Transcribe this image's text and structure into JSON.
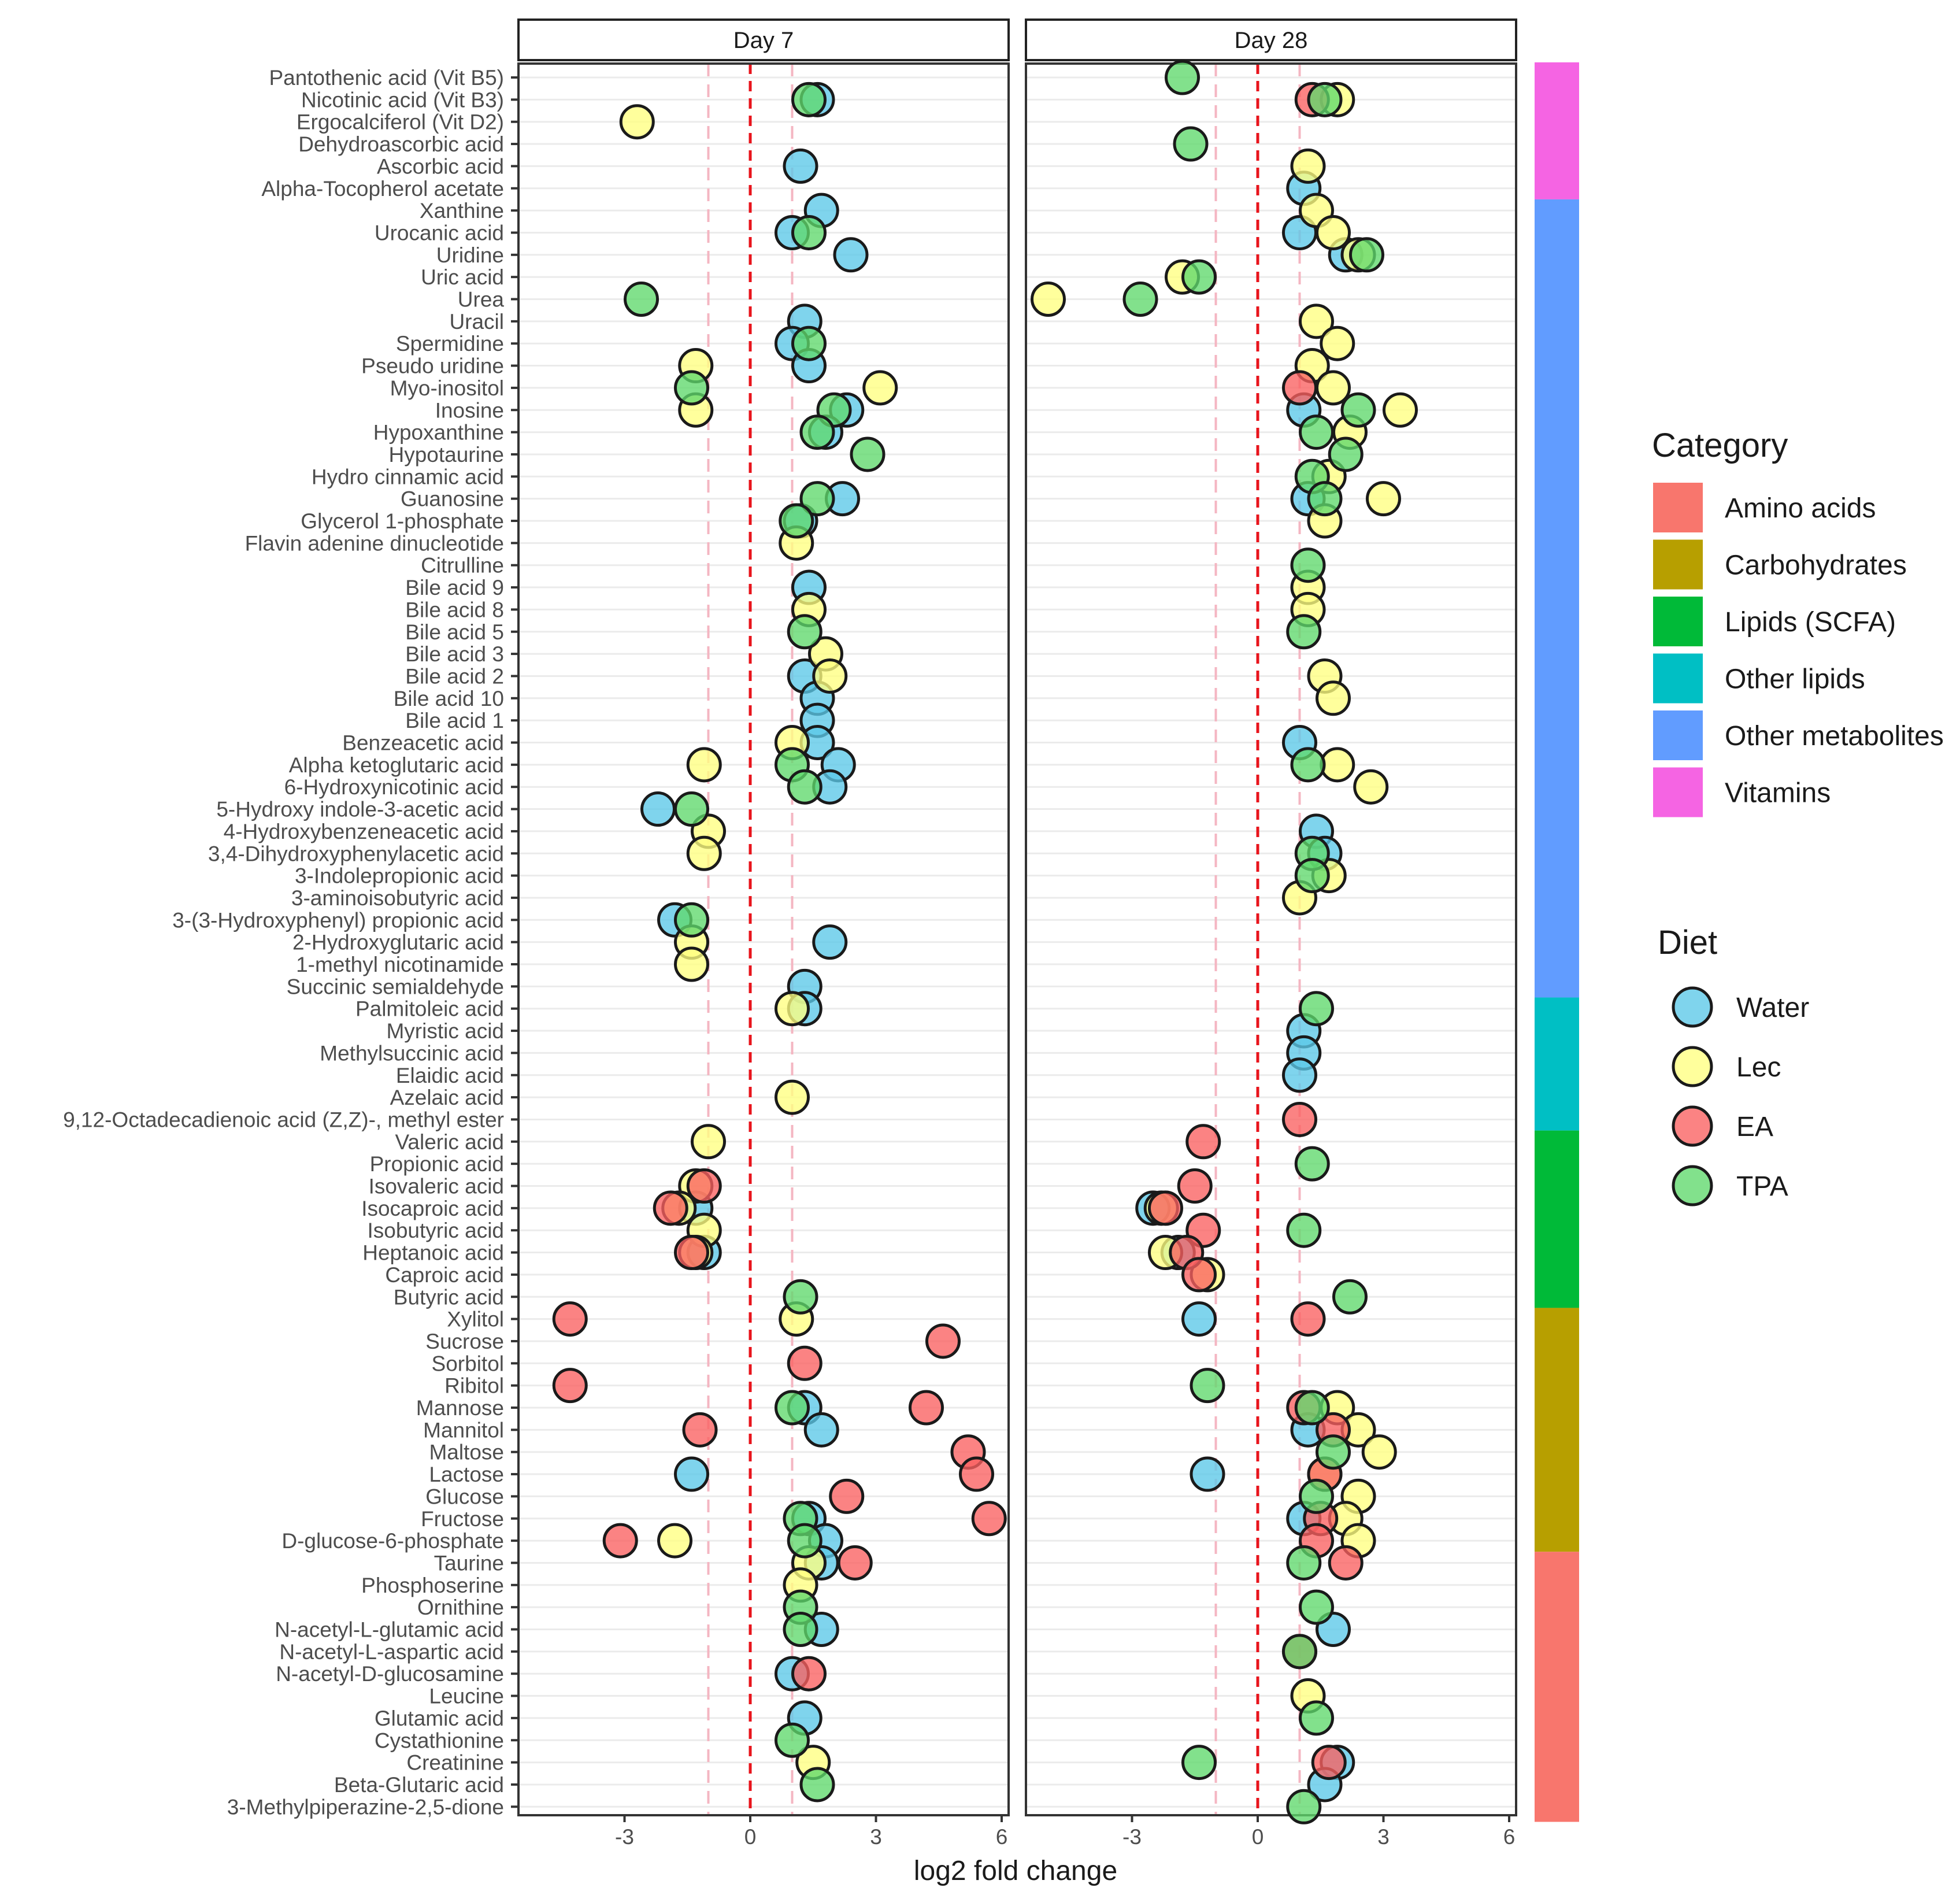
{
  "chart_data": {
    "type": "scatter",
    "xlabel": "log2 fold change",
    "xlim": [
      -5.5,
      6.2
    ],
    "x_ticks": [
      -3,
      0,
      3,
      6
    ],
    "tick_labels": [
      "-3",
      "0",
      "3",
      "6"
    ],
    "reference_lines": {
      "zero": 0,
      "threshold": [
        -1,
        1
      ]
    },
    "panels": [
      "Day 7",
      "Day 28"
    ],
    "metabolites": [
      "Pantothenic acid (Vit B5)",
      "Nicotinic acid (Vit B3)",
      "Ergocalciferol (Vit D2)",
      "Dehydroascorbic acid",
      "Ascorbic acid",
      "Alpha-Tocopherol acetate",
      "Xanthine",
      "Urocanic acid",
      "Uridine",
      "Uric acid",
      "Urea",
      "Uracil",
      "Spermidine",
      "Pseudo uridine",
      "Myo-inositol",
      "Inosine",
      "Hypoxanthine",
      "Hypotaurine",
      "Hydro cinnamic acid",
      "Guanosine",
      "Glycerol 1-phosphate",
      "Flavin adenine dinucleotide",
      "Citrulline",
      "Bile acid 9",
      "Bile acid 8",
      "Bile acid 5",
      "Bile acid 3",
      "Bile acid 2",
      "Bile acid 10",
      "Bile acid 1",
      "Benzeacetic acid",
      "Alpha ketoglutaric acid",
      "6-Hydroxynicotinic acid",
      "5-Hydroxy indole-3-acetic acid",
      "4-Hydroxybenzeneacetic acid",
      "3,4-Dihydroxyphenylacetic acid",
      "3-Indolepropionic acid",
      "3-aminoisobutyric acid",
      "3-(3-Hydroxyphenyl) propionic acid",
      "2-Hydroxyglutaric acid",
      "1-methyl nicotinamide",
      "Succinic semialdehyde",
      "Palmitoleic acid",
      "Myristic acid",
      "Methylsuccinic acid",
      "Elaidic acid",
      "Azelaic acid",
      "9,12-Octadecadienoic acid (Z,Z)-, methyl ester",
      "Valeric acid",
      "Propionic acid",
      "Isovaleric acid",
      "Isocaproic acid",
      "Isobutyric acid",
      "Heptanoic acid",
      "Caproic acid",
      "Butyric acid",
      "Xylitol",
      "Sucrose",
      "Sorbitol",
      "Ribitol",
      "Mannose",
      "Mannitol",
      "Maltose",
      "Lactose",
      "Glucose",
      "Fructose",
      "D-glucose-6-phosphate",
      "Taurine",
      "Phosphoserine",
      "Ornithine",
      "N-acetyl-L-glutamic acid",
      "N-acetyl-L-aspartic acid",
      "N-acetyl-D-glucosamine",
      "Leucine",
      "Glutamic acid",
      "Cystathionine",
      "Creatinine",
      "Beta-Glutaric acid",
      "3-Methylpiperazine-2,5-dione"
    ],
    "categories": [
      {
        "name": "Vitamins",
        "color": "#F564E3",
        "from": "Pantothenic acid (Vit B5)",
        "to": "Alpha-Tocopherol acetate"
      },
      {
        "name": "Other metabolites",
        "color": "#619CFF",
        "from": "Xanthine",
        "to": "Succinic semialdehyde"
      },
      {
        "name": "Other lipids",
        "color": "#00BFC4",
        "from": "Palmitoleic acid",
        "to": "9,12-Octadecadienoic acid (Z,Z)-, methyl ester"
      },
      {
        "name": "Lipids (SCFA)",
        "color": "#00BA38",
        "from": "Valeric acid",
        "to": "Butyric acid"
      },
      {
        "name": "Carbohydrates",
        "color": "#B79F00",
        "from": "Xylitol",
        "to": "D-glucose-6-phosphate"
      },
      {
        "name": "Amino acids",
        "color": "#F8766D",
        "from": "Taurine",
        "to": "3-Methylpiperazine-2,5-dione"
      }
    ],
    "legend_category": {
      "title": "Category",
      "items": [
        {
          "label": "Amino acids",
          "color": "#F8766D"
        },
        {
          "label": "Carbohydrates",
          "color": "#B79F00"
        },
        {
          "label": "Lipids (SCFA)",
          "color": "#00BA38"
        },
        {
          "label": "Other lipids",
          "color": "#00BFC4"
        },
        {
          "label": "Other metabolites",
          "color": "#619CFF"
        },
        {
          "label": "Vitamins",
          "color": "#F564E3"
        }
      ]
    },
    "legend_diet": {
      "title": "Diet",
      "items": [
        {
          "label": "Water",
          "color": "#5BC8E8"
        },
        {
          "label": "Lec",
          "color": "#FFFF80"
        },
        {
          "label": "EA",
          "color": "#FA6060"
        },
        {
          "label": "TPA",
          "color": "#5FD96B"
        }
      ]
    },
    "series": [
      {
        "panel": "Day 7",
        "diet": "Water",
        "points": [
          [
            "Nicotinic acid (Vit B3)",
            1.6
          ],
          [
            "Ascorbic acid",
            1.2
          ],
          [
            "Xanthine",
            1.7
          ],
          [
            "Urocanic acid",
            1.0
          ],
          [
            "Uridine",
            2.4
          ],
          [
            "Uracil",
            1.3
          ],
          [
            "Spermidine",
            1.0
          ],
          [
            "Pseudo uridine",
            1.4
          ],
          [
            "Inosine",
            2.3
          ],
          [
            "Hypoxanthine",
            1.8
          ],
          [
            "Guanosine",
            2.2
          ],
          [
            "Glycerol 1-phosphate",
            1.2
          ],
          [
            "Bile acid 9",
            1.4
          ],
          [
            "Bile acid 2",
            1.3
          ],
          [
            "Bile acid 10",
            1.6
          ],
          [
            "Bile acid 1",
            1.6
          ],
          [
            "Benzeacetic acid",
            1.6
          ],
          [
            "Alpha ketoglutaric acid",
            2.1
          ],
          [
            "6-Hydroxynicotinic acid",
            1.9
          ],
          [
            "5-Hydroxy indole-3-acetic acid",
            -2.2
          ],
          [
            "3-(3-Hydroxyphenyl) propionic acid",
            -1.8
          ],
          [
            "2-Hydroxyglutaric acid",
            1.9
          ],
          [
            "Succinic semialdehyde",
            1.3
          ],
          [
            "Palmitoleic acid",
            1.3
          ],
          [
            "Isocaproic acid",
            -1.3
          ],
          [
            "Heptanoic acid",
            -1.1
          ],
          [
            "Mannose",
            1.3
          ],
          [
            "Mannitol",
            1.7
          ],
          [
            "Lactose",
            -1.4
          ],
          [
            "Fructose",
            1.4
          ],
          [
            "D-glucose-6-phosphate",
            1.8
          ],
          [
            "Taurine",
            1.7
          ],
          [
            "N-acetyl-L-glutamic acid",
            1.7
          ],
          [
            "N-acetyl-D-glucosamine",
            1.0
          ],
          [
            "Glutamic acid",
            1.3
          ]
        ]
      },
      {
        "panel": "Day 7",
        "diet": "Lec",
        "points": [
          [
            "Ergocalciferol (Vit D2)",
            -2.7
          ],
          [
            "Pseudo uridine",
            -1.3
          ],
          [
            "Myo-inositol",
            3.1
          ],
          [
            "Inosine",
            -1.3
          ],
          [
            "Flavin adenine dinucleotide",
            1.1
          ],
          [
            "Bile acid 8",
            1.4
          ],
          [
            "Bile acid 3",
            1.8
          ],
          [
            "Bile acid 2",
            1.9
          ],
          [
            "Benzeacetic acid",
            1.0
          ],
          [
            "Alpha ketoglutaric acid",
            -1.1
          ],
          [
            "4-Hydroxybenzeneacetic acid",
            -1.0
          ],
          [
            "3,4-Dihydroxyphenylacetic acid",
            -1.1
          ],
          [
            "2-Hydroxyglutaric acid",
            -1.4
          ],
          [
            "1-methyl nicotinamide",
            -1.4
          ],
          [
            "Palmitoleic acid",
            1.0
          ],
          [
            "Azelaic acid",
            1.0
          ],
          [
            "Valeric acid",
            -1.0
          ],
          [
            "Isovaleric acid",
            -1.3
          ],
          [
            "Isocaproic acid",
            -1.7
          ],
          [
            "Isobutyric acid",
            -1.1
          ],
          [
            "Heptanoic acid",
            -1.3
          ],
          [
            "Xylitol",
            1.1
          ],
          [
            "D-glucose-6-phosphate",
            -1.8
          ],
          [
            "Taurine",
            1.4
          ],
          [
            "Phosphoserine",
            1.2
          ],
          [
            "Creatinine",
            1.5
          ]
        ]
      },
      {
        "panel": "Day 7",
        "diet": "EA",
        "points": [
          [
            "Isovaleric acid",
            -1.1
          ],
          [
            "Isocaproic acid",
            -1.9
          ],
          [
            "Heptanoic acid",
            -1.4
          ],
          [
            "Xylitol",
            -4.3
          ],
          [
            "Sucrose",
            4.6
          ],
          [
            "Sorbitol",
            1.3
          ],
          [
            "Ribitol",
            -4.3
          ],
          [
            "Mannose",
            4.2
          ],
          [
            "Mannitol",
            -1.2
          ],
          [
            "Maltose",
            5.2
          ],
          [
            "Lactose",
            5.4
          ],
          [
            "Glucose",
            2.3
          ],
          [
            "Fructose",
            5.7
          ],
          [
            "D-glucose-6-phosphate",
            -3.1
          ],
          [
            "Taurine",
            2.5
          ],
          [
            "N-acetyl-D-glucosamine",
            1.4
          ]
        ]
      },
      {
        "panel": "Day 7",
        "diet": "TPA",
        "points": [
          [
            "Nicotinic acid (Vit B3)",
            1.4
          ],
          [
            "Urocanic acid",
            1.4
          ],
          [
            "Urea",
            -2.6
          ],
          [
            "Spermidine",
            1.4
          ],
          [
            "Myo-inositol",
            -1.4
          ],
          [
            "Inosine",
            2.0
          ],
          [
            "Hypoxanthine",
            1.6
          ],
          [
            "Hypotaurine",
            2.8
          ],
          [
            "Guanosine",
            1.6
          ],
          [
            "Glycerol 1-phosphate",
            1.1
          ],
          [
            "Bile acid 5",
            1.3
          ],
          [
            "Alpha ketoglutaric acid",
            1.0
          ],
          [
            "6-Hydroxynicotinic acid",
            1.3
          ],
          [
            "5-Hydroxy indole-3-acetic acid",
            -1.4
          ],
          [
            "3-(3-Hydroxyphenyl) propionic acid",
            -1.4
          ],
          [
            "Butyric acid",
            1.2
          ],
          [
            "Mannose",
            1.0
          ],
          [
            "Fructose",
            1.2
          ],
          [
            "D-glucose-6-phosphate",
            1.3
          ],
          [
            "Ornithine",
            1.2
          ],
          [
            "N-acetyl-L-glutamic acid",
            1.2
          ],
          [
            "Cystathionine",
            1.0
          ],
          [
            "Beta-Glutaric acid",
            1.6
          ]
        ]
      },
      {
        "panel": "Day 28",
        "diet": "Water",
        "points": [
          [
            "Alpha-Tocopherol acetate",
            1.1
          ],
          [
            "Urocanic acid",
            1.0
          ],
          [
            "Uridine",
            2.1
          ],
          [
            "Inosine",
            1.1
          ],
          [
            "Guanosine",
            1.2
          ],
          [
            "Benzeacetic acid",
            1.0
          ],
          [
            "4-Hydroxybenzeneacetic acid",
            1.4
          ],
          [
            "3,4-Dihydroxyphenylacetic acid",
            1.6
          ],
          [
            "Myristic acid",
            1.1
          ],
          [
            "Methylsuccinic acid",
            1.1
          ],
          [
            "Elaidic acid",
            1.0
          ],
          [
            "Isocaproic acid",
            -2.5
          ],
          [
            "Heptanoic acid",
            -1.9
          ],
          [
            "Xylitol",
            -1.4
          ],
          [
            "Mannitol",
            1.2
          ],
          [
            "Lactose",
            -1.2
          ],
          [
            "Fructose",
            1.1
          ],
          [
            "N-acetyl-L-glutamic acid",
            1.8
          ],
          [
            "Creatinine",
            1.9
          ],
          [
            "Beta-Glutaric acid",
            1.6
          ]
        ]
      },
      {
        "panel": "Day 28",
        "diet": "Lec",
        "points": [
          [
            "Nicotinic acid (Vit B3)",
            1.9
          ],
          [
            "Ascorbic acid",
            1.2
          ],
          [
            "Xanthine",
            1.4
          ],
          [
            "Urocanic acid",
            1.8
          ],
          [
            "Uridine",
            2.4
          ],
          [
            "Uric acid",
            -1.8
          ],
          [
            "Urea",
            -5.0
          ],
          [
            "Uracil",
            1.4
          ],
          [
            "Spermidine",
            1.9
          ],
          [
            "Pseudo uridine",
            1.3
          ],
          [
            "Myo-inositol",
            1.8
          ],
          [
            "Inosine",
            3.4
          ],
          [
            "Hypoxanthine",
            2.2
          ],
          [
            "Hydro cinnamic acid",
            1.7
          ],
          [
            "Guanosine",
            3.0
          ],
          [
            "Glycerol 1-phosphate",
            1.6
          ],
          [
            "Bile acid 9",
            1.2
          ],
          [
            "Bile acid 8",
            1.2
          ],
          [
            "Bile acid 2",
            1.6
          ],
          [
            "Bile acid 10",
            1.8
          ],
          [
            "Alpha ketoglutaric acid",
            1.9
          ],
          [
            "6-Hydroxynicotinic acid",
            2.7
          ],
          [
            "3-Indolepropionic acid",
            1.7
          ],
          [
            "3-aminoisobutyric acid",
            1.0
          ],
          [
            "Caproic acid",
            -1.2
          ],
          [
            "Heptanoic acid",
            -2.2
          ],
          [
            "Isocaproic acid",
            -2.3
          ],
          [
            "Mannose",
            1.9
          ],
          [
            "Mannitol",
            2.4
          ],
          [
            "Maltose",
            2.9
          ],
          [
            "Lactose",
            1.6
          ],
          [
            "Glucose",
            2.4
          ],
          [
            "Fructose",
            2.1
          ],
          [
            "D-glucose-6-phosphate",
            2.4
          ],
          [
            "Leucine",
            1.2
          ]
        ]
      },
      {
        "panel": "Day 28",
        "diet": "EA",
        "points": [
          [
            "Nicotinic acid (Vit B3)",
            1.3
          ],
          [
            "Myo-inositol",
            1.0
          ],
          [
            "9,12-Octadecadienoic acid (Z,Z)-, methyl ester",
            1.0
          ],
          [
            "Valeric acid",
            -1.3
          ],
          [
            "Isovaleric acid",
            -1.5
          ],
          [
            "Isocaproic acid",
            -2.2
          ],
          [
            "Isobutyric acid",
            -1.3
          ],
          [
            "Heptanoic acid",
            -1.7
          ],
          [
            "Caproic acid",
            -1.4
          ],
          [
            "Xylitol",
            1.2
          ],
          [
            "Mannose",
            1.1
          ],
          [
            "Mannitol",
            1.8
          ],
          [
            "Lactose",
            1.6
          ],
          [
            "Fructose",
            1.5
          ],
          [
            "D-glucose-6-phosphate",
            1.4
          ],
          [
            "Taurine",
            2.1
          ],
          [
            "N-acetyl-L-aspartic acid",
            1.0
          ],
          [
            "Creatinine",
            1.7
          ]
        ]
      },
      {
        "panel": "Day 28",
        "diet": "TPA",
        "points": [
          [
            "Pantothenic acid (Vit B5)",
            -1.8
          ],
          [
            "Nicotinic acid (Vit B3)",
            1.6
          ],
          [
            "Dehydroascorbic acid",
            -1.6
          ],
          [
            "Uridine",
            2.6
          ],
          [
            "Uric acid",
            -1.4
          ],
          [
            "Urea",
            -2.8
          ],
          [
            "Inosine",
            2.4
          ],
          [
            "Hypoxanthine",
            1.4
          ],
          [
            "Hypotaurine",
            2.1
          ],
          [
            "Hydro cinnamic acid",
            1.3
          ],
          [
            "Guanosine",
            1.6
          ],
          [
            "Citrulline",
            1.2
          ],
          [
            "Bile acid 5",
            1.1
          ],
          [
            "Alpha ketoglutaric acid",
            1.2
          ],
          [
            "3,4-Dihydroxyphenylacetic acid",
            1.3
          ],
          [
            "3-Indolepropionic acid",
            1.3
          ],
          [
            "Palmitoleic acid",
            1.4
          ],
          [
            "Propionic acid",
            1.3
          ],
          [
            "Isobutyric acid",
            1.1
          ],
          [
            "Butyric acid",
            2.2
          ],
          [
            "Ribitol",
            -1.2
          ],
          [
            "Mannose",
            1.3
          ],
          [
            "Maltose",
            1.8
          ],
          [
            "Glucose",
            1.4
          ],
          [
            "Taurine",
            1.1
          ],
          [
            "Ornithine",
            1.4
          ],
          [
            "N-acetyl-L-aspartic acid",
            1.0
          ],
          [
            "Glutamic acid",
            1.4
          ],
          [
            "Creatinine",
            -1.4
          ],
          [
            "3-Methylpiperazine-2,5-dione",
            1.1
          ]
        ]
      }
    ]
  }
}
